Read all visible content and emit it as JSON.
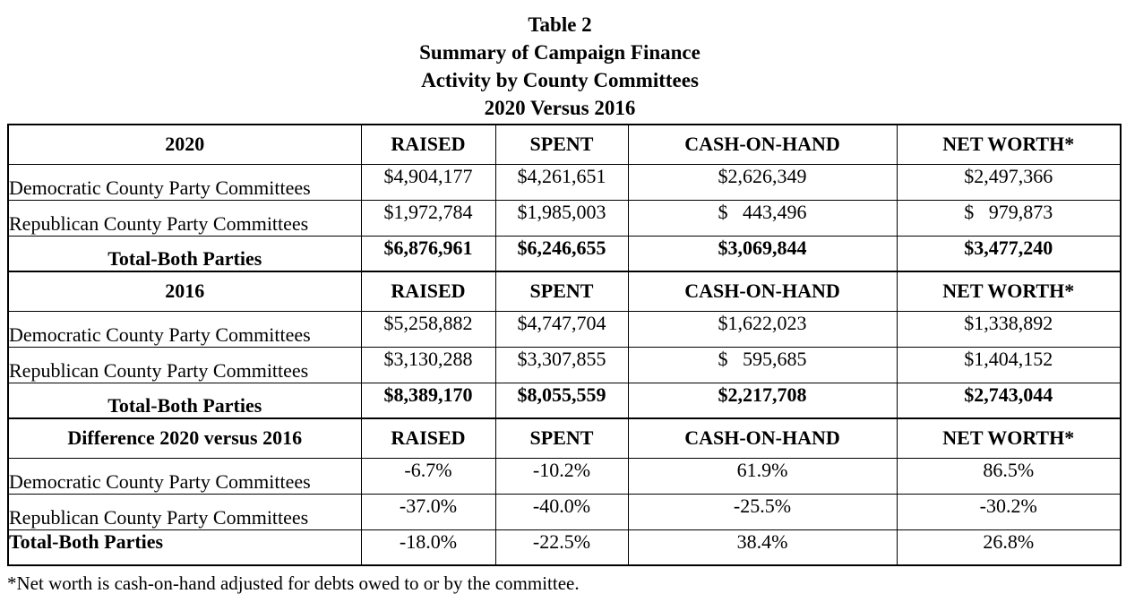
{
  "page": {
    "title_lines": [
      "Table 2",
      "Summary of Campaign Finance",
      "Activity by County Committees",
      "2020 Versus 2016"
    ],
    "footnote": "*Net worth is cash-on-hand adjusted for debts owed to or by the committee."
  },
  "table": {
    "columns": {
      "raised": "RAISED",
      "spent": "SPENT",
      "cash": "CASH-ON-HAND",
      "net": "NET WORTH*"
    },
    "sections": [
      {
        "header_label": "2020",
        "rows": [
          {
            "label": "Democratic County Party Committees",
            "raised": "$4,904,177",
            "spent": "$4,261,651",
            "cash": "$2,626,349",
            "net": "$2,497,366"
          },
          {
            "label": "Republican County Party Committees",
            "raised": "$1,972,784",
            "spent": "$1,985,003",
            "cash": "$   443,496",
            "net": "$   979,873"
          },
          {
            "label": "Total-Both Parties",
            "raised": "$6,876,961",
            "spent": "$6,246,655",
            "cash": "$3,069,844",
            "net": "$3,477,240"
          }
        ]
      },
      {
        "header_label": "2016",
        "rows": [
          {
            "label": "Democratic County Party Committees",
            "raised": "$5,258,882",
            "spent": "$4,747,704",
            "cash": "$1,622,023",
            "net": "$1,338,892"
          },
          {
            "label": "Republican County Party Committees",
            "raised": "$3,130,288",
            "spent": "$3,307,855",
            "cash": "$   595,685",
            "net": "$1,404,152"
          },
          {
            "label": "Total-Both Parties",
            "raised": "$8,389,170",
            "spent": "$8,055,559",
            "cash": "$2,217,708",
            "net": "$2,743,044"
          }
        ]
      },
      {
        "header_label": "Difference 2020 versus 2016",
        "rows": [
          {
            "label": "Democratic County Party Committees",
            "raised": "-6.7%",
            "spent": "-10.2%",
            "cash": "61.9%",
            "net": "86.5%"
          },
          {
            "label": "Republican County Party Committees",
            "raised": "-37.0%",
            "spent": "-40.0%",
            "cash": "-25.5%",
            "net": "-30.2%"
          },
          {
            "label": "Total-Both Parties",
            "raised": "-18.0%",
            "spent": "-22.5%",
            "cash": "38.4%",
            "net": "26.8%"
          }
        ]
      }
    ]
  }
}
